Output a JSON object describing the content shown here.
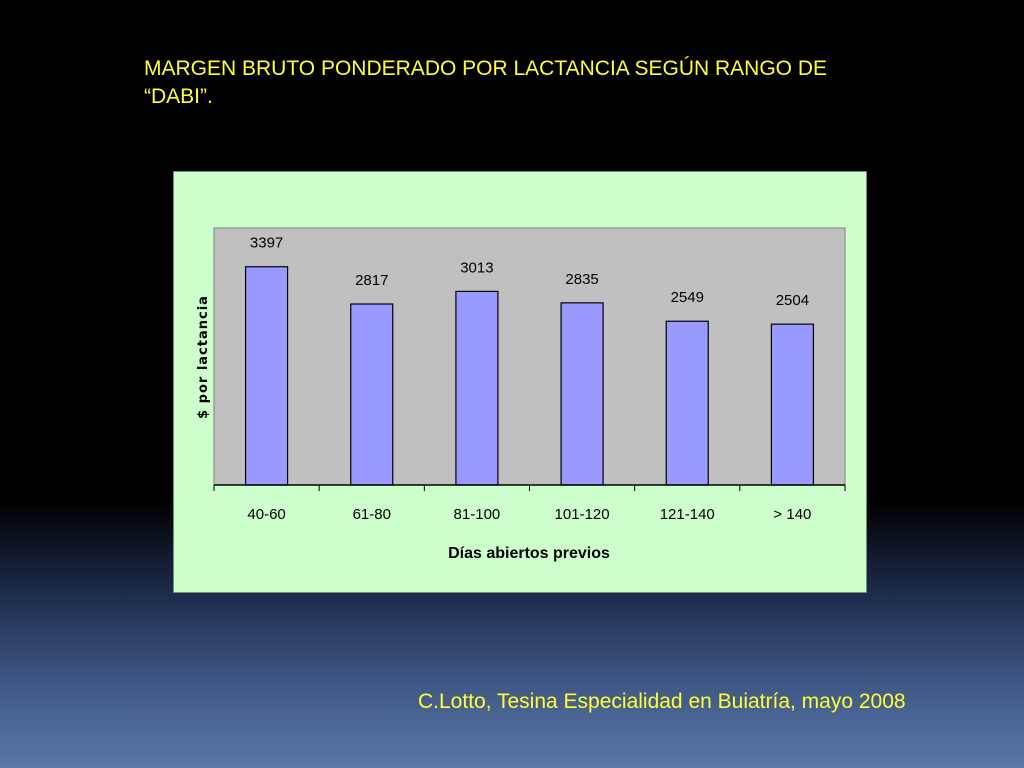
{
  "slide": {
    "title": "MARGEN BRUTO PONDERADO POR LACTANCIA SEGÚN RANGO DE “DABI”.",
    "source": "C.Lotto, Tesina Especialidad en Buiatría, mayo 2008"
  },
  "colors": {
    "text": "#ffff33",
    "bar_fill": "#9999ff",
    "plot_bg": "#c0c0c0",
    "chart_bg": "#ccffcc"
  },
  "chart_data": {
    "type": "bar",
    "categories": [
      "40-60",
      "61-80",
      "81-100",
      "101-120",
      "121-140",
      "> 140"
    ],
    "values": [
      3397,
      2817,
      3013,
      2835,
      2549,
      2504
    ],
    "data_labels": [
      "3397",
      "2817",
      "3013",
      "2835",
      "2549",
      "2504"
    ],
    "xlabel": "Días abiertos previos",
    "ylabel": "$ por lactancia",
    "ylim": [
      0,
      4000
    ],
    "grid": false,
    "legend": "none"
  }
}
